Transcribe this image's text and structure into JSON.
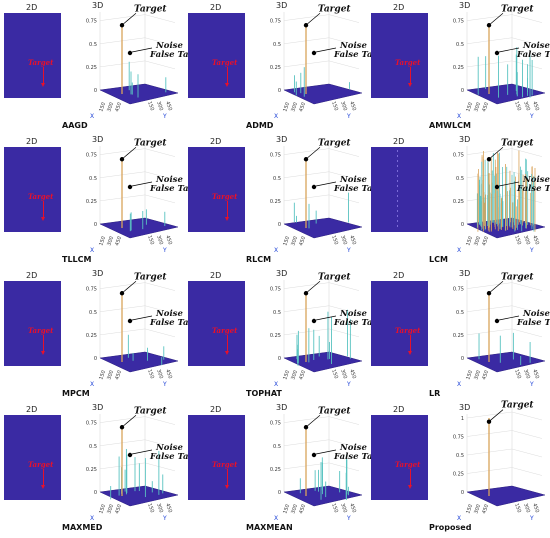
{
  "panel_labels": {
    "view_2d": "2D",
    "view_3d": "3D"
  },
  "annotations": {
    "target": "Target",
    "noise": "Noise",
    "false_target": "False Target",
    "target_2d": "Target"
  },
  "axes": {
    "x_label": "X",
    "y_label": "Y",
    "z_ticks_default": [
      "0",
      "0.25",
      "0.5",
      "0.75"
    ],
    "z_ticks_full": [
      "0",
      "0.25",
      "0.5",
      "0.75",
      "1"
    ],
    "xy_ticks": [
      "150",
      "300",
      "450"
    ]
  },
  "colors": {
    "plane": "#3a2aa3",
    "arrow_2d": "#e8102a",
    "spike_target": "#d9a35a",
    "spike_noise": "#59c3c1"
  },
  "panels": [
    {
      "method": "AAGD",
      "noise_level": "low",
      "show_noise": true,
      "extra": ""
    },
    {
      "method": "ADMD",
      "noise_level": "low",
      "show_noise": true,
      "extra": ""
    },
    {
      "method": "AMWLCM",
      "noise_level": "medium",
      "show_noise": true,
      "extra": ""
    },
    {
      "method": "TLLCM",
      "noise_level": "low",
      "show_noise": true,
      "extra": ""
    },
    {
      "method": "RLCM",
      "noise_level": "low",
      "show_noise": true,
      "extra": ""
    },
    {
      "method": "LCM",
      "noise_level": "dense",
      "show_noise": true,
      "extra": "lcm"
    },
    {
      "method": "MPCM",
      "noise_level": "low",
      "show_noise": true,
      "extra": ""
    },
    {
      "method": "TOPHAT",
      "noise_level": "medium",
      "show_noise": true,
      "extra": ""
    },
    {
      "method": "LR",
      "noise_level": "low",
      "show_noise": true,
      "extra": ""
    },
    {
      "method": "MAXMED",
      "noise_level": "medium",
      "show_noise": true,
      "extra": ""
    },
    {
      "method": "MAXMEAN",
      "noise_level": "medium",
      "show_noise": true,
      "extra": ""
    },
    {
      "method": "Proposed",
      "noise_level": "none",
      "show_noise": false,
      "extra": "proposed"
    }
  ]
}
